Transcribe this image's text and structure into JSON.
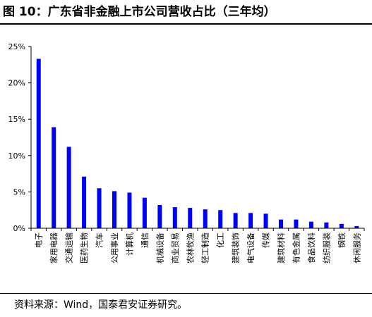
{
  "title": "图 10：广东省非金融上市公司营收占比（三年均）",
  "source": "资料来源：Wind，国泰君安证券研究。",
  "chart_data": {
    "type": "bar",
    "title": "",
    "xlabel": "",
    "ylabel": "",
    "ylim": [
      0,
      25
    ],
    "yticks": [
      "0%",
      "5%",
      "10%",
      "15%",
      "20%",
      "25%"
    ],
    "grid": false,
    "legend": "none",
    "bar_color": "#0000ff",
    "categories": [
      "电子",
      "家用电器",
      "交通运输",
      "医药生物",
      "汽车",
      "公用事业",
      "计算机",
      "通信",
      "机械设备",
      "商业贸易",
      "农林牧渔",
      "轻工制造",
      "化工",
      "建筑装饰",
      "电气设备",
      "传媒",
      "建筑材料",
      "有色金属",
      "食品饮料",
      "纺织服装",
      "钢铁",
      "休闲服务"
    ],
    "values": [
      23.3,
      13.9,
      11.2,
      7.1,
      5.5,
      5.1,
      4.9,
      4.2,
      3.2,
      2.9,
      2.8,
      2.6,
      2.5,
      2.1,
      2.1,
      2.0,
      1.2,
      1.2,
      0.9,
      0.8,
      0.6,
      0.3
    ]
  }
}
